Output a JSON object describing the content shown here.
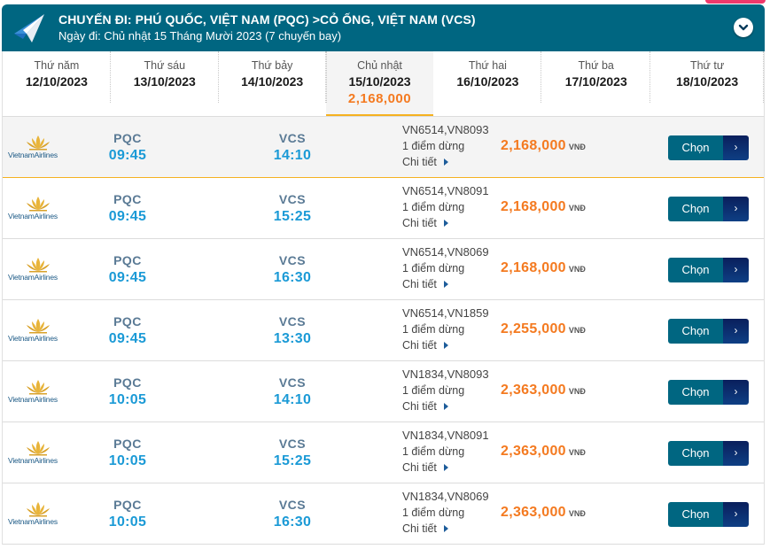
{
  "header": {
    "title": "CHUYẾN ĐI: PHÚ QUỐC, VIỆT NAM (PQC) >CỎ ỐNG, VIỆT NAM (VCS)",
    "subtitle": "Ngày đi: Chủ nhật 15 Tháng Mười 2023 (7 chuyến bay)",
    "icon": "paper-plane-icon",
    "collapse_icon": "chevron-down-circle-icon"
  },
  "colors": {
    "header_bg": "#006681",
    "price": "#f47a20",
    "time": "#1b9ad6",
    "airport_code": "#5a7a95",
    "active_border": "#f5b120",
    "button": "#006681",
    "button_arrow": "#0a1f5c"
  },
  "dates": [
    {
      "day": "Thứ năm",
      "date": "12/10/2023",
      "price": "",
      "active": false
    },
    {
      "day": "Thứ sáu",
      "date": "13/10/2023",
      "price": "",
      "active": false
    },
    {
      "day": "Thứ bảy",
      "date": "14/10/2023",
      "price": "",
      "active": false
    },
    {
      "day": "Chủ nhật",
      "date": "15/10/2023",
      "price": "2,168,000",
      "active": true
    },
    {
      "day": "Thứ hai",
      "date": "16/10/2023",
      "price": "",
      "active": false
    },
    {
      "day": "Thứ ba",
      "date": "17/10/2023",
      "price": "",
      "active": false
    },
    {
      "day": "Thứ tư",
      "date": "18/10/2023",
      "price": "",
      "active": false
    }
  ],
  "flights": [
    {
      "airline": "VietnamAirlines",
      "from": "PQC",
      "depart": "09:45",
      "to": "VCS",
      "arrive": "14:10",
      "flight_numbers": "VN6514,VN8093",
      "stops": "1 điểm dừng",
      "details": "Chi tiết",
      "price": "2,168,000",
      "currency": "VNĐ",
      "button": "Chọn",
      "selected": true
    },
    {
      "airline": "VietnamAirlines",
      "from": "PQC",
      "depart": "09:45",
      "to": "VCS",
      "arrive": "15:25",
      "flight_numbers": "VN6514,VN8091",
      "stops": "1 điểm dừng",
      "details": "Chi tiết",
      "price": "2,168,000",
      "currency": "VNĐ",
      "button": "Chọn",
      "selected": false
    },
    {
      "airline": "VietnamAirlines",
      "from": "PQC",
      "depart": "09:45",
      "to": "VCS",
      "arrive": "16:30",
      "flight_numbers": "VN6514,VN8069",
      "stops": "1 điểm dừng",
      "details": "Chi tiết",
      "price": "2,168,000",
      "currency": "VNĐ",
      "button": "Chọn",
      "selected": false
    },
    {
      "airline": "VietnamAirlines",
      "from": "PQC",
      "depart": "09:45",
      "to": "VCS",
      "arrive": "13:30",
      "flight_numbers": "VN6514,VN1859",
      "stops": "1 điểm dừng",
      "details": "Chi tiết",
      "price": "2,255,000",
      "currency": "VNĐ",
      "button": "Chọn",
      "selected": false
    },
    {
      "airline": "VietnamAirlines",
      "from": "PQC",
      "depart": "10:05",
      "to": "VCS",
      "arrive": "14:10",
      "flight_numbers": "VN1834,VN8093",
      "stops": "1 điểm dừng",
      "details": "Chi tiết",
      "price": "2,363,000",
      "currency": "VNĐ",
      "button": "Chọn",
      "selected": false
    },
    {
      "airline": "VietnamAirlines",
      "from": "PQC",
      "depart": "10:05",
      "to": "VCS",
      "arrive": "15:25",
      "flight_numbers": "VN1834,VN8091",
      "stops": "1 điểm dừng",
      "details": "Chi tiết",
      "price": "2,363,000",
      "currency": "VNĐ",
      "button": "Chọn",
      "selected": false
    },
    {
      "airline": "VietnamAirlines",
      "from": "PQC",
      "depart": "10:05",
      "to": "VCS",
      "arrive": "16:30",
      "flight_numbers": "VN1834,VN8069",
      "stops": "1 điểm dừng",
      "details": "Chi tiết",
      "price": "2,363,000",
      "currency": "VNĐ",
      "button": "Chọn",
      "selected": false
    }
  ]
}
